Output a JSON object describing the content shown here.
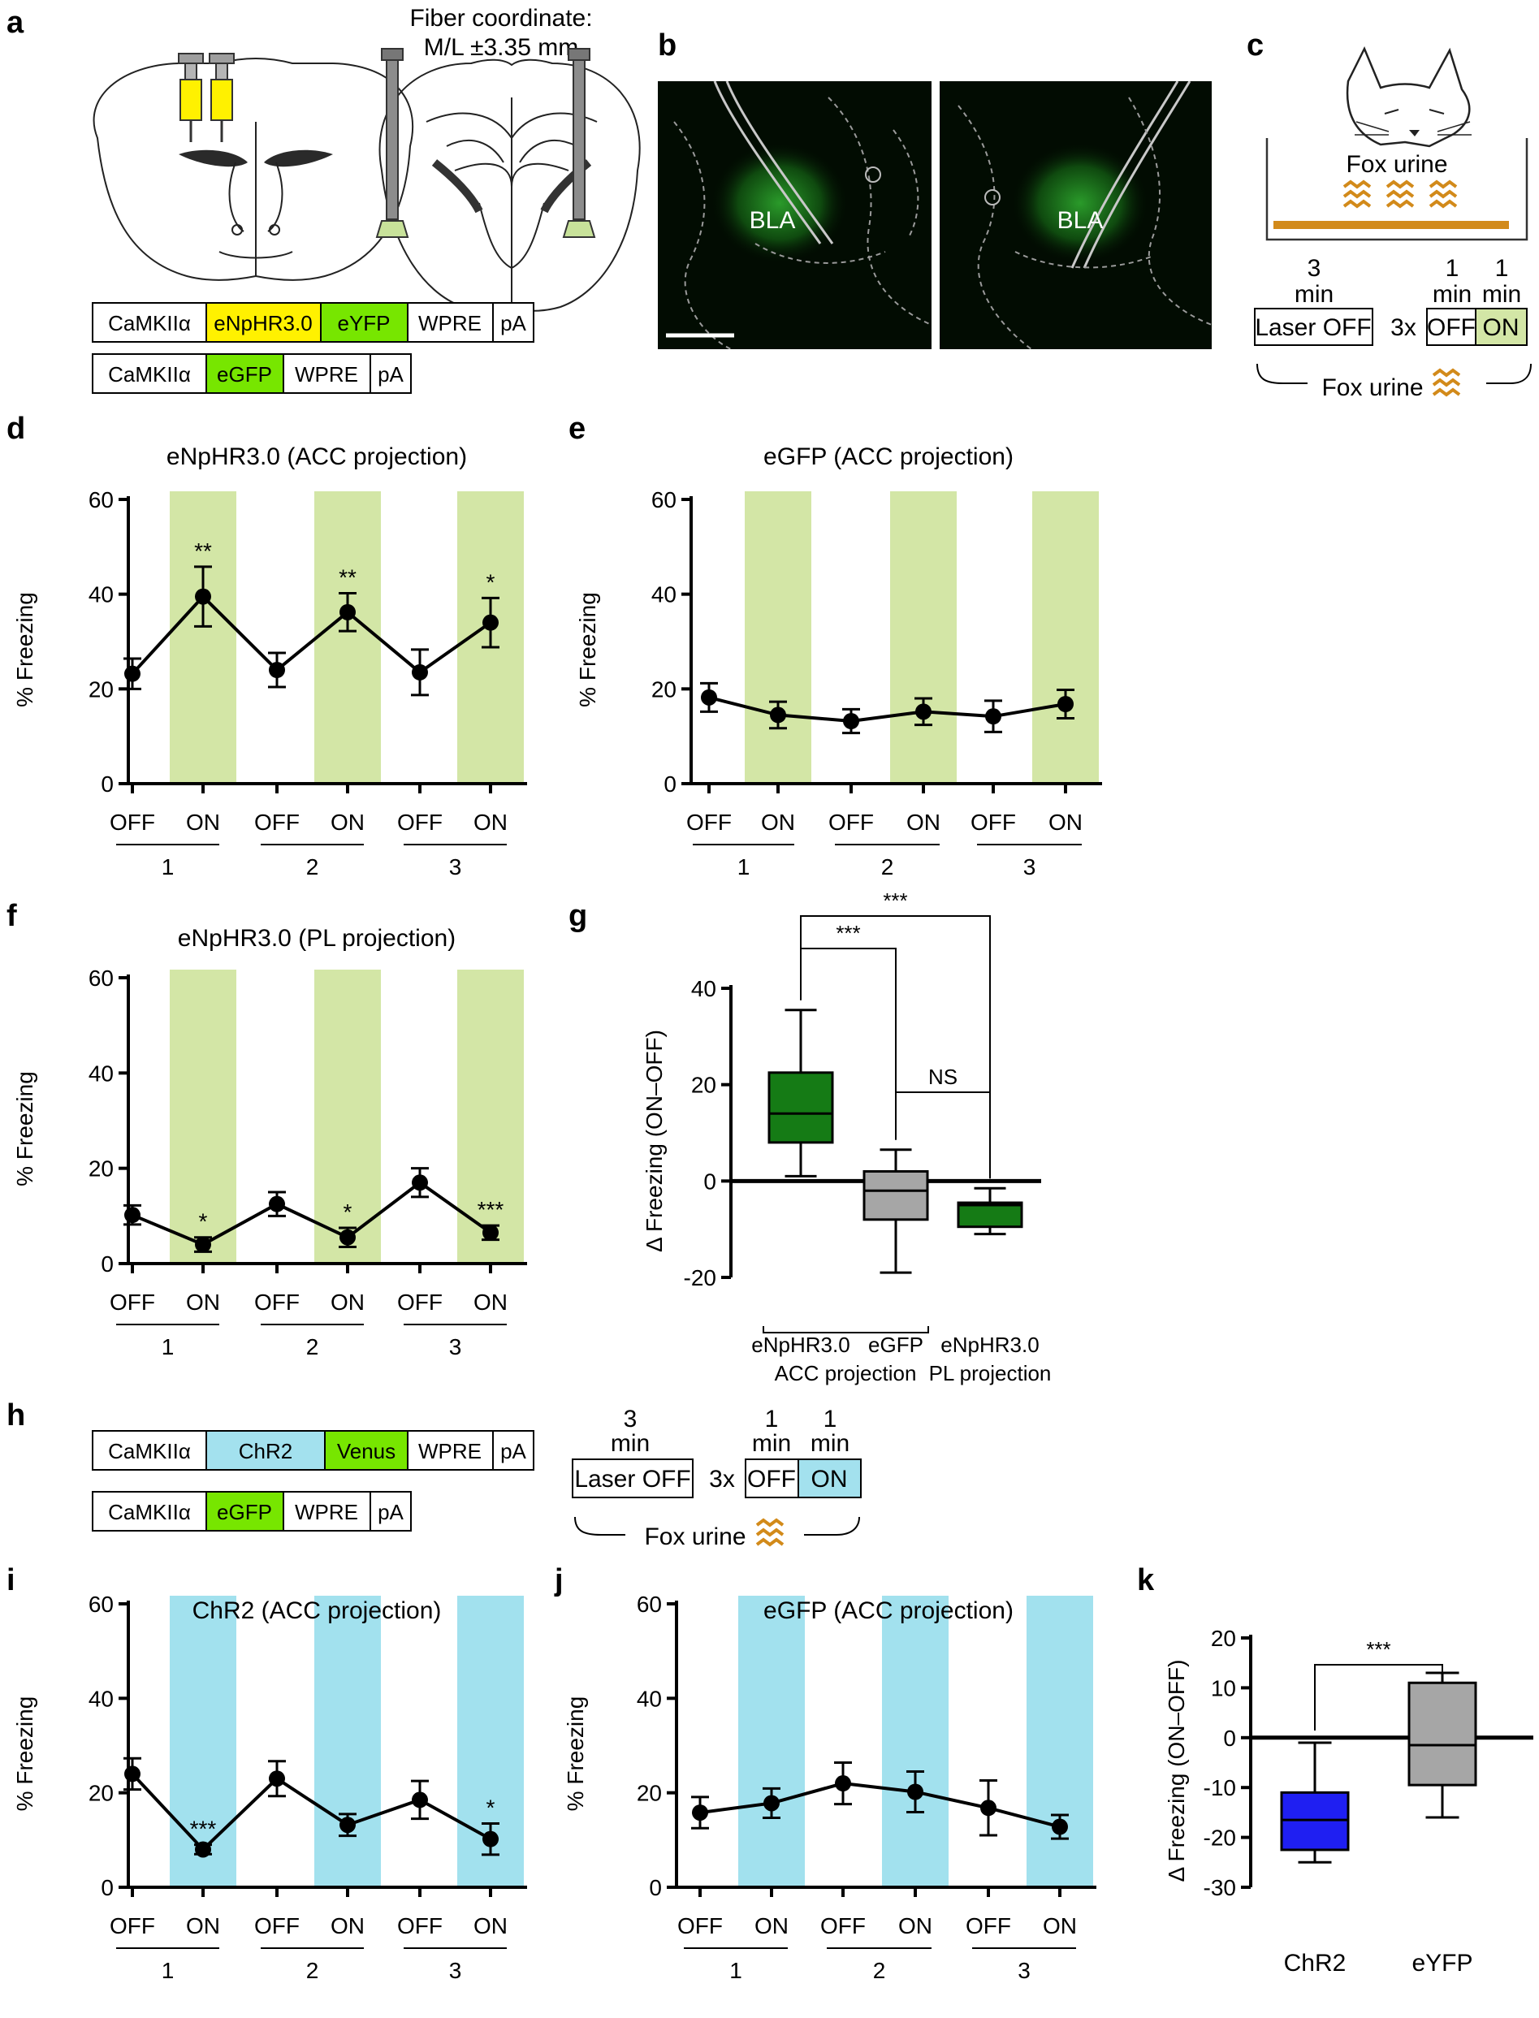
{
  "panels": {
    "a": "a",
    "b": "b",
    "c": "c",
    "d": "d",
    "e": "e",
    "f": "f",
    "g": "g",
    "h": "h",
    "i": "i",
    "j": "j",
    "k": "k"
  },
  "a": {
    "fiber_line1": "Fiber coordinate:",
    "fiber_line2": "M/L ±3.35 mm",
    "construct1": [
      "CaMKIIα",
      "eNpHR3.0",
      "eYFP",
      "WPRE",
      "pA"
    ],
    "construct2": [
      "CaMKIIα",
      "eGFP",
      "WPRE",
      "pA"
    ]
  },
  "b": {
    "label_left": "BLA",
    "label_right": "BLA"
  },
  "c": {
    "fox_urine_top": "Fox urine",
    "t1_num": "3",
    "t1_unit": "min",
    "t2_num": "1",
    "t2_unit": "min",
    "t3_num": "1",
    "t3_unit": "min",
    "laser_off": "Laser OFF",
    "repeat": "3x",
    "off": "OFF",
    "on": "ON",
    "fox_urine_bottom": "Fox urine"
  },
  "h": {
    "construct1": [
      "CaMKIIα",
      "ChR2",
      "Venus",
      "WPRE",
      "pA"
    ],
    "construct2": [
      "CaMKIIα",
      "eGFP",
      "WPRE",
      "pA"
    ],
    "t1_num": "3",
    "t1_unit": "min",
    "t2_num": "1",
    "t2_unit": "min",
    "t3_num": "1",
    "t3_unit": "min",
    "laser_off": "Laser OFF",
    "repeat": "3x",
    "off": "OFF",
    "on": "ON",
    "fox_urine": "Fox urine"
  },
  "colors": {
    "halo_shade": "#d3e6a6",
    "chr2_shade": "#a2e1ee",
    "eNpHR_yellow": "#fff100",
    "eYFP_green": "#77e600",
    "chr2_blue": "#a3e1ee",
    "box_green": "#157b15",
    "box_gray": "#a6a6a6",
    "box_blue": "#1f1ff2",
    "fox_urine": "#d28a1a",
    "tissue_bg": "#020c02"
  },
  "chart_data": [
    {
      "id": "d",
      "type": "line",
      "title": "eNpHR3.0 (ACC projection)",
      "ylabel": "% Freezing",
      "ylim": [
        0,
        60
      ],
      "yticks": [
        0,
        20,
        40,
        60
      ],
      "categories": [
        "OFF",
        "ON",
        "OFF",
        "ON",
        "OFF",
        "ON"
      ],
      "groups": [
        "1",
        "2",
        "3"
      ],
      "shade": "halo",
      "values": [
        23.2,
        39.5,
        24.0,
        36.2,
        23.5,
        34.0
      ],
      "errors": [
        3.2,
        6.3,
        3.6,
        4.0,
        4.8,
        5.2
      ],
      "annotations": [
        "",
        "**",
        "",
        "**",
        "",
        "*"
      ]
    },
    {
      "id": "e",
      "type": "line",
      "title": "eGFP (ACC projection)",
      "ylabel": "% Freezing",
      "ylim": [
        0,
        60
      ],
      "yticks": [
        0,
        20,
        40,
        60
      ],
      "categories": [
        "OFF",
        "ON",
        "OFF",
        "ON",
        "OFF",
        "ON"
      ],
      "groups": [
        "1",
        "2",
        "3"
      ],
      "shade": "halo",
      "values": [
        18.2,
        14.5,
        13.2,
        15.2,
        14.2,
        16.8
      ],
      "errors": [
        3.0,
        2.8,
        2.5,
        2.8,
        3.3,
        3.0
      ],
      "annotations": [
        "",
        "",
        "",
        "",
        "",
        ""
      ]
    },
    {
      "id": "f",
      "type": "line",
      "title": "eNpHR3.0 (PL projection)",
      "ylabel": "% Freezing",
      "ylim": [
        0,
        60
      ],
      "yticks": [
        0,
        20,
        40,
        60
      ],
      "categories": [
        "OFF",
        "ON",
        "OFF",
        "ON",
        "OFF",
        "ON"
      ],
      "groups": [
        "1",
        "2",
        "3"
      ],
      "shade": "halo",
      "values": [
        10.2,
        4.0,
        12.5,
        5.5,
        17.0,
        6.5
      ],
      "errors": [
        2.0,
        1.5,
        2.5,
        2.0,
        3.0,
        1.5
      ],
      "annotations": [
        "",
        "*",
        "",
        "*",
        "",
        "***"
      ]
    },
    {
      "id": "g",
      "type": "box",
      "ylabel": "Δ Freezing (ON–OFF)",
      "ylim": [
        -20,
        40
      ],
      "yticks": [
        -20,
        0,
        20,
        40
      ],
      "categories": [
        "eNpHR3.0",
        "eGFP",
        "eNpHR3.0"
      ],
      "group_labels": [
        "ACC projection",
        "PL projection"
      ],
      "boxes": [
        {
          "min": 1,
          "q1": 8,
          "median": 14,
          "q3": 22.5,
          "max": 35.5,
          "color": "box_green"
        },
        {
          "min": -19,
          "q1": -8,
          "median": -2,
          "q3": 2,
          "max": 6.5,
          "color": "box_gray"
        },
        {
          "min": -11,
          "q1": -9.5,
          "median": -5,
          "q3": -4.5,
          "max": -1.5,
          "color": "box_green"
        }
      ],
      "comparisons": [
        {
          "a": 0,
          "b": 2,
          "label": "***"
        },
        {
          "a": 0,
          "b": 1,
          "label": "***"
        },
        {
          "a": 1,
          "b": 2,
          "label": "NS"
        }
      ]
    },
    {
      "id": "i",
      "type": "line",
      "title": "ChR2 (ACC projection)",
      "ylabel": "% Freezing",
      "ylim": [
        0,
        60
      ],
      "yticks": [
        0,
        20,
        40,
        60
      ],
      "categories": [
        "OFF",
        "ON",
        "OFF",
        "ON",
        "OFF",
        "ON"
      ],
      "groups": [
        "1",
        "2",
        "3"
      ],
      "shade": "chr2",
      "values": [
        24.0,
        8.0,
        23.0,
        13.2,
        18.5,
        10.2
      ],
      "errors": [
        3.3,
        1.0,
        3.7,
        2.3,
        4.0,
        3.3
      ],
      "annotations": [
        "",
        "***",
        "",
        "",
        "",
        "*"
      ]
    },
    {
      "id": "j",
      "type": "line",
      "title": "eGFP (ACC projection)",
      "ylabel": "% Freezing",
      "ylim": [
        0,
        60
      ],
      "yticks": [
        0,
        20,
        40,
        60
      ],
      "categories": [
        "OFF",
        "ON",
        "OFF",
        "ON",
        "OFF",
        "ON"
      ],
      "groups": [
        "1",
        "2",
        "3"
      ],
      "shade": "chr2",
      "values": [
        15.8,
        17.8,
        22.0,
        20.2,
        16.8,
        12.8
      ],
      "errors": [
        3.3,
        3.1,
        4.4,
        4.3,
        5.8,
        2.5
      ],
      "annotations": [
        "",
        "",
        "",
        "",
        "",
        ""
      ]
    },
    {
      "id": "k",
      "type": "box",
      "ylabel": "Δ Freezing (ON–OFF)",
      "ylim": [
        -30,
        20
      ],
      "yticks": [
        -30,
        -20,
        -10,
        0,
        10,
        20
      ],
      "categories": [
        "ChR2",
        "eYFP"
      ],
      "boxes": [
        {
          "min": -25,
          "q1": -22.5,
          "median": -16.5,
          "q3": -11,
          "max": -1,
          "color": "box_blue"
        },
        {
          "min": -16,
          "q1": -9.5,
          "median": -1.5,
          "q3": 11,
          "max": 13,
          "color": "box_gray"
        }
      ],
      "comparisons": [
        {
          "a": 0,
          "b": 1,
          "label": "***"
        }
      ]
    }
  ]
}
